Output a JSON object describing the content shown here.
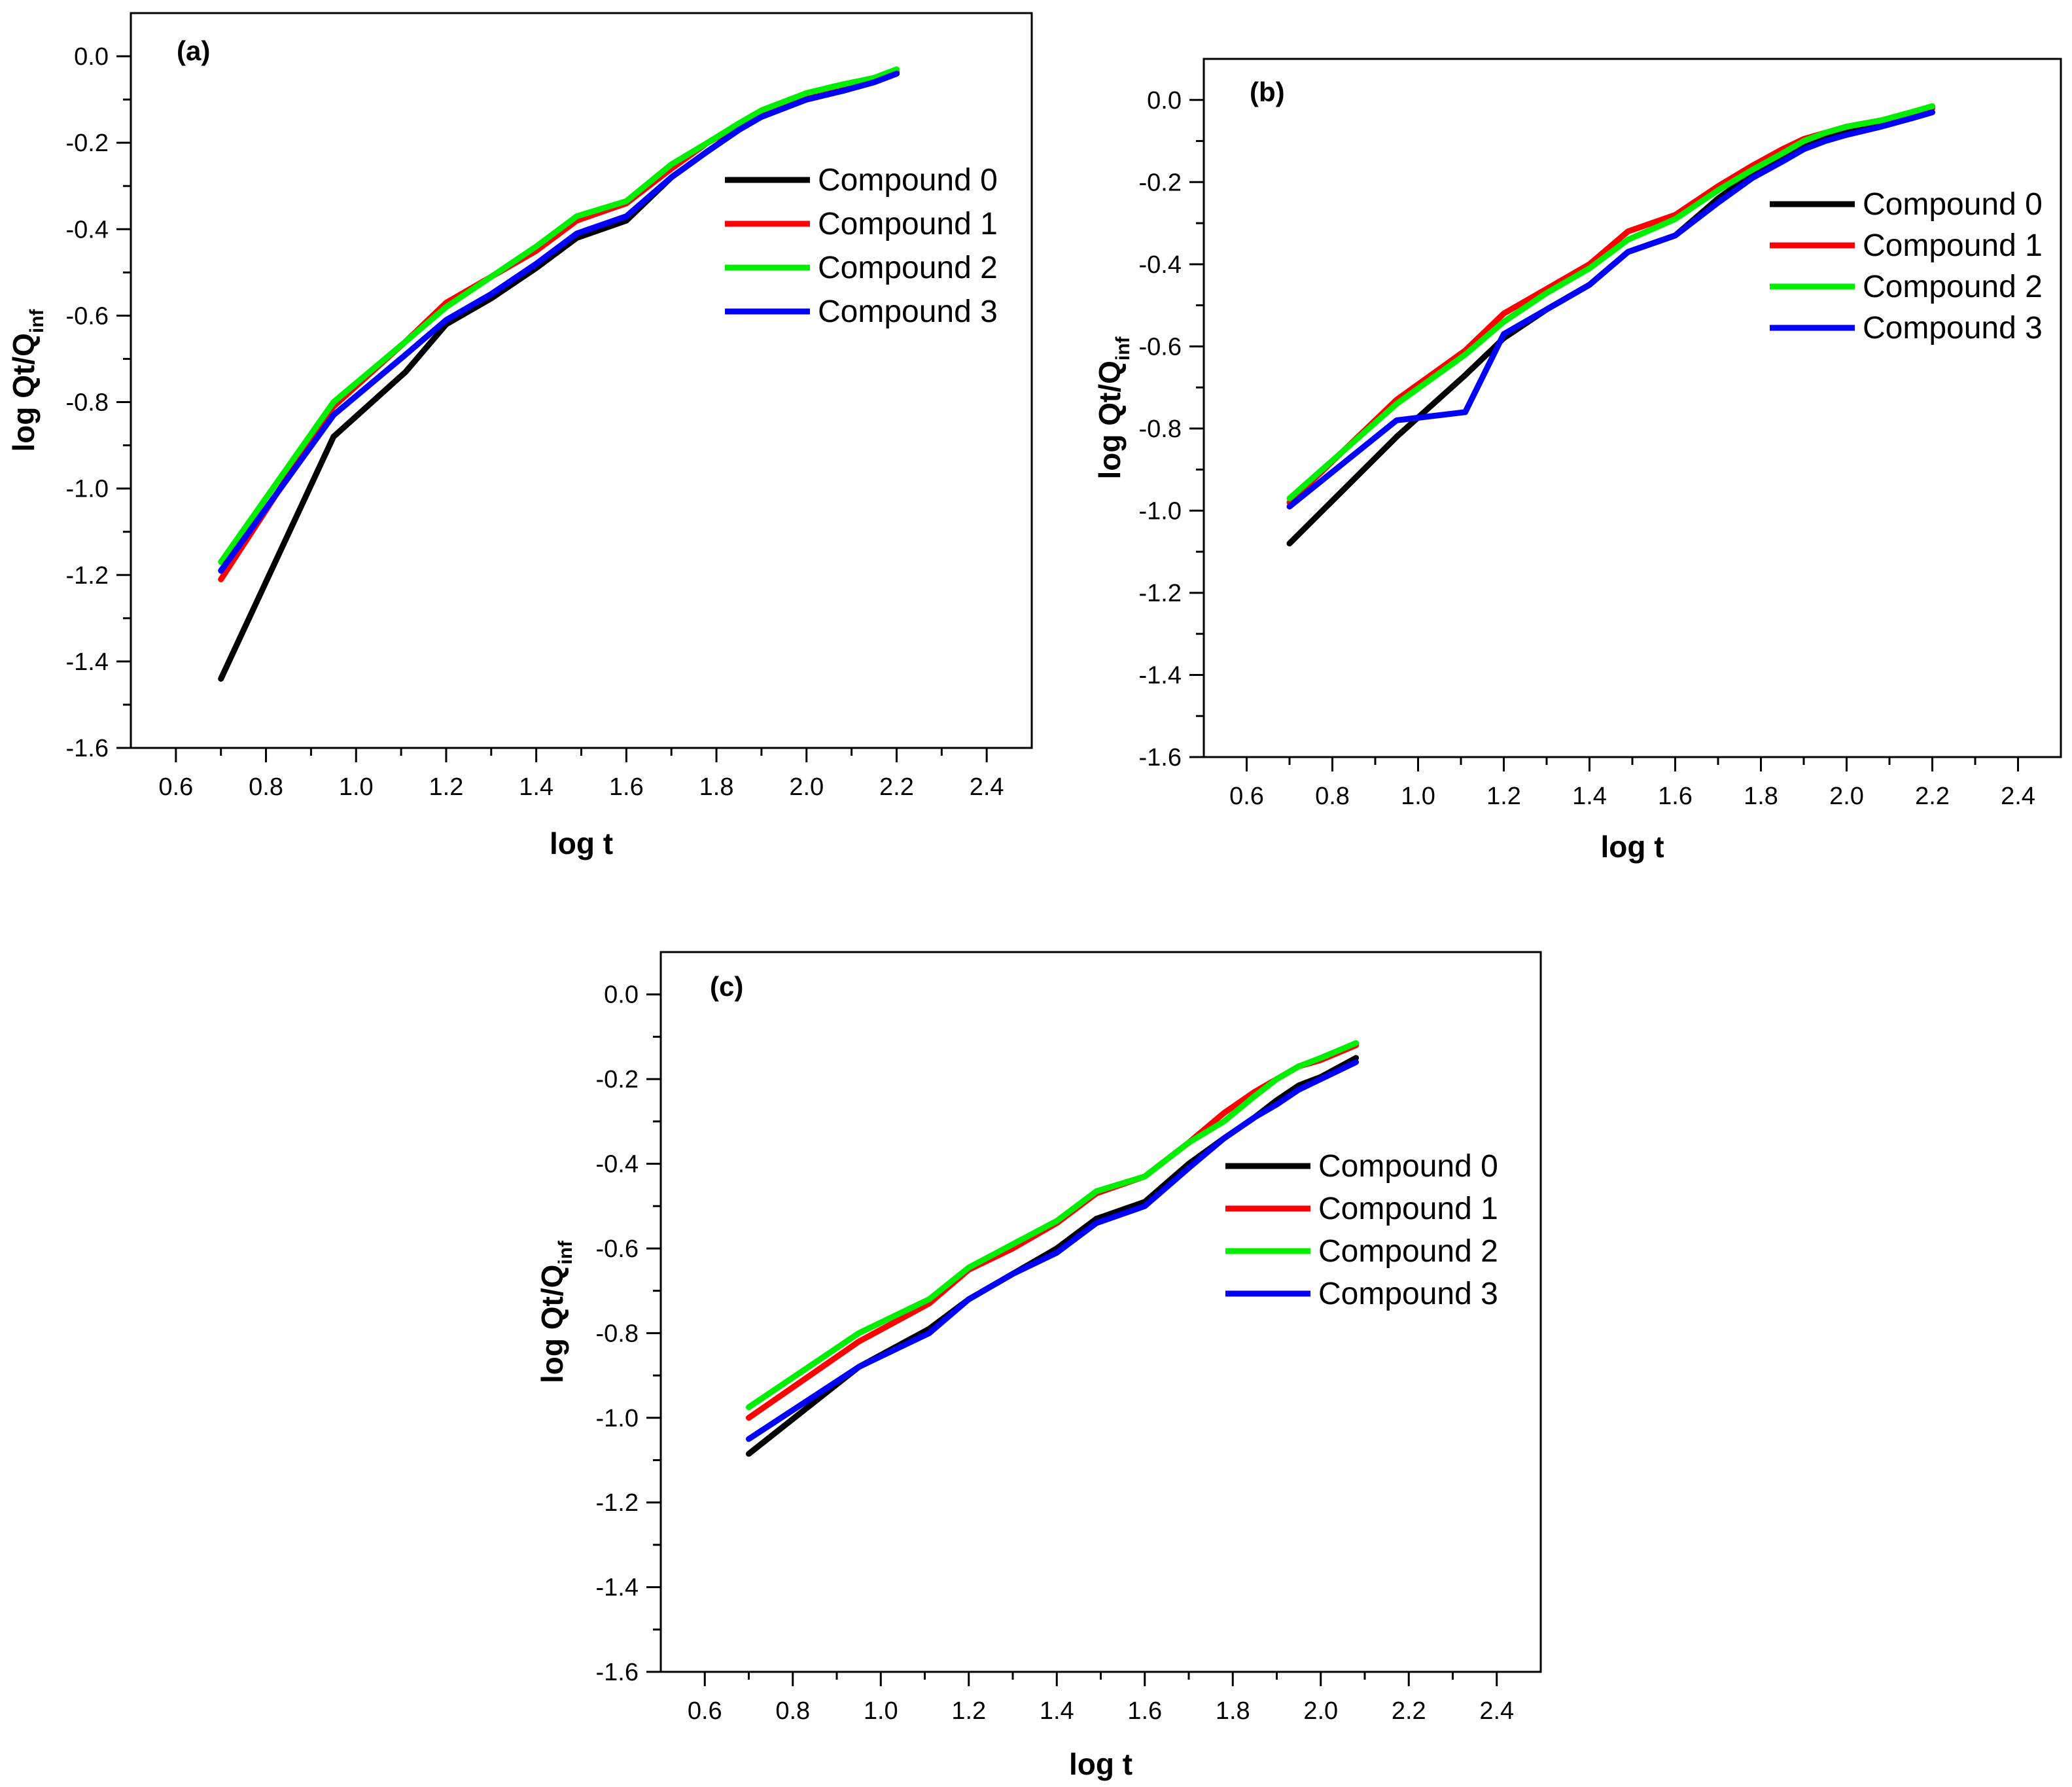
{
  "chart_data": [
    {
      "type": "line",
      "panel_label": "(a)",
      "xlabel": "log t",
      "ylabel": "log Qt/Q",
      "ylabel_subscript": "inf",
      "xlim": [
        0.5,
        2.5
      ],
      "ylim": [
        -1.6,
        0.1
      ],
      "xticks": [
        "0.6",
        "0.8",
        "1.0",
        "1.2",
        "1.4",
        "1.6",
        "1.8",
        "2.0",
        "2.2",
        "2.4"
      ],
      "yticks": [
        "0.0",
        "-0.2",
        "-0.4",
        "-0.6",
        "-0.8",
        "-1.0",
        "-1.2",
        "-1.4",
        "-1.6"
      ],
      "legend_position": "middle-right",
      "x": [
        0.7,
        0.95,
        1.11,
        1.2,
        1.3,
        1.4,
        1.49,
        1.6,
        1.7,
        1.78,
        1.85,
        1.9,
        1.95,
        2.0,
        2.08,
        2.15,
        2.2
      ],
      "series": [
        {
          "name": "Compound 0",
          "color": "#000000",
          "values": [
            -1.44,
            -0.88,
            -0.73,
            -0.62,
            -0.56,
            -0.49,
            -0.42,
            -0.38,
            -0.28,
            -0.22,
            -0.17,
            -0.14,
            -0.12,
            -0.1,
            -0.08,
            -0.06,
            -0.04
          ]
        },
        {
          "name": "Compound 1",
          "color": "#ff0000",
          "values": [
            -1.21,
            -0.81,
            -0.66,
            -0.57,
            -0.51,
            -0.45,
            -0.38,
            -0.34,
            -0.26,
            -0.2,
            -0.16,
            -0.13,
            -0.11,
            -0.09,
            -0.07,
            -0.05,
            -0.035
          ]
        },
        {
          "name": "Compound 2",
          "color": "#00ee00",
          "values": [
            -1.17,
            -0.8,
            -0.66,
            -0.58,
            -0.51,
            -0.44,
            -0.37,
            -0.335,
            -0.25,
            -0.2,
            -0.155,
            -0.125,
            -0.105,
            -0.085,
            -0.065,
            -0.05,
            -0.03
          ]
        },
        {
          "name": "Compound 3",
          "color": "#0000ff",
          "values": [
            -1.19,
            -0.83,
            -0.69,
            -0.61,
            -0.55,
            -0.48,
            -0.41,
            -0.37,
            -0.28,
            -0.22,
            -0.17,
            -0.14,
            -0.12,
            -0.1,
            -0.08,
            -0.06,
            -0.04
          ]
        }
      ]
    },
    {
      "type": "line",
      "panel_label": "(b)",
      "xlabel": "log t",
      "ylabel": "log Qt/Q",
      "ylabel_subscript": "inf",
      "xlim": [
        0.5,
        2.5
      ],
      "ylim": [
        -1.6,
        0.1
      ],
      "xticks": [
        "0.6",
        "0.8",
        "1.0",
        "1.2",
        "1.4",
        "1.6",
        "1.8",
        "2.0",
        "2.2",
        "2.4"
      ],
      "yticks": [
        "0.0",
        "-0.2",
        "-0.4",
        "-0.6",
        "-0.8",
        "-1.0",
        "-1.2",
        "-1.4",
        "-1.6"
      ],
      "legend_position": "top-right",
      "x": [
        0.7,
        0.95,
        1.11,
        1.2,
        1.3,
        1.4,
        1.49,
        1.6,
        1.7,
        1.78,
        1.85,
        1.9,
        1.95,
        2.0,
        2.08,
        2.15,
        2.2
      ],
      "series": [
        {
          "name": "Compound 0",
          "color": "#000000",
          "values": [
            -1.08,
            -0.82,
            -0.67,
            -0.58,
            -0.51,
            -0.45,
            -0.37,
            -0.33,
            -0.24,
            -0.18,
            -0.14,
            -0.11,
            -0.09,
            -0.08,
            -0.06,
            -0.045,
            -0.03
          ]
        },
        {
          "name": "Compound 1",
          "color": "#ff0000",
          "values": [
            -0.98,
            -0.73,
            -0.61,
            -0.52,
            -0.46,
            -0.4,
            -0.32,
            -0.28,
            -0.21,
            -0.16,
            -0.12,
            -0.095,
            -0.08,
            -0.065,
            -0.05,
            -0.035,
            -0.02
          ]
        },
        {
          "name": "Compound 2",
          "color": "#00ee00",
          "values": [
            -0.97,
            -0.74,
            -0.62,
            -0.54,
            -0.47,
            -0.41,
            -0.34,
            -0.29,
            -0.22,
            -0.17,
            -0.13,
            -0.1,
            -0.08,
            -0.065,
            -0.05,
            -0.03,
            -0.015
          ]
        },
        {
          "name": "Compound 3",
          "color": "#0000ff",
          "values": [
            -0.99,
            -0.78,
            -0.76,
            -0.57,
            -0.51,
            -0.45,
            -0.37,
            -0.33,
            -0.25,
            -0.19,
            -0.15,
            -0.12,
            -0.1,
            -0.085,
            -0.065,
            -0.045,
            -0.03
          ]
        }
      ]
    },
    {
      "type": "line",
      "panel_label": "(c)",
      "xlabel": "log t",
      "ylabel": "log Qt/Q",
      "ylabel_subscript": "inf",
      "xlim": [
        0.5,
        2.5
      ],
      "ylim": [
        -1.6,
        0.1
      ],
      "xticks": [
        "0.6",
        "0.8",
        "1.0",
        "1.2",
        "1.4",
        "1.6",
        "1.8",
        "2.0",
        "2.2",
        "2.4"
      ],
      "yticks": [
        "0.0",
        "-0.2",
        "-0.4",
        "-0.6",
        "-0.8",
        "-1.0",
        "-1.2",
        "-1.4",
        "-1.6"
      ],
      "legend_position": "middle-right",
      "x": [
        0.7,
        0.95,
        1.11,
        1.2,
        1.3,
        1.4,
        1.49,
        1.6,
        1.7,
        1.78,
        1.85,
        1.9,
        1.95,
        2.0,
        2.08
      ],
      "series": [
        {
          "name": "Compound 0",
          "color": "#000000",
          "values": [
            -1.085,
            -0.88,
            -0.79,
            -0.72,
            -0.66,
            -0.6,
            -0.53,
            -0.49,
            -0.4,
            -0.34,
            -0.29,
            -0.25,
            -0.215,
            -0.195,
            -0.15
          ]
        },
        {
          "name": "Compound 1",
          "color": "#ff0000",
          "values": [
            -1.0,
            -0.82,
            -0.73,
            -0.65,
            -0.6,
            -0.54,
            -0.47,
            -0.43,
            -0.35,
            -0.28,
            -0.23,
            -0.2,
            -0.17,
            -0.155,
            -0.12
          ]
        },
        {
          "name": "Compound 2",
          "color": "#00ee00",
          "values": [
            -0.975,
            -0.8,
            -0.72,
            -0.645,
            -0.59,
            -0.535,
            -0.465,
            -0.43,
            -0.35,
            -0.3,
            -0.24,
            -0.2,
            -0.17,
            -0.15,
            -0.115
          ]
        },
        {
          "name": "Compound 3",
          "color": "#0000ff",
          "values": [
            -1.05,
            -0.88,
            -0.8,
            -0.72,
            -0.66,
            -0.61,
            -0.54,
            -0.5,
            -0.41,
            -0.34,
            -0.29,
            -0.26,
            -0.225,
            -0.2,
            -0.16
          ]
        }
      ]
    }
  ]
}
